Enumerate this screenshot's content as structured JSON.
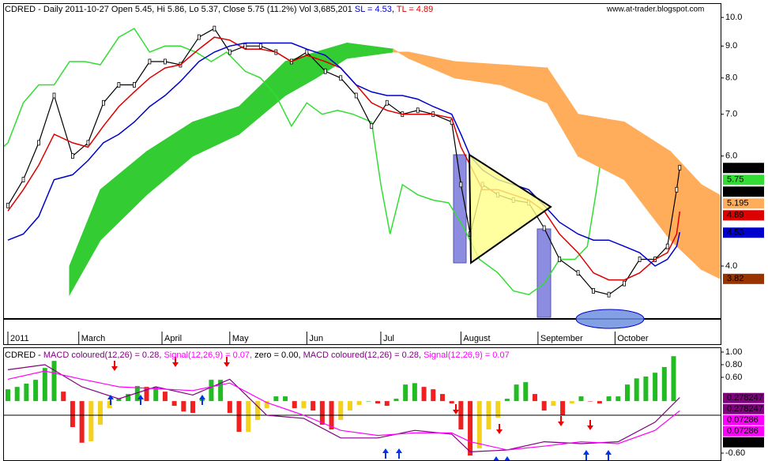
{
  "chart_data": [
    {
      "type": "ichimoku",
      "title": "CDRED - Daily 2011-10-27 Open 5.45, Hi 5.86, Lo 5.37, Close 5.75 (11.2%) Vol 3,685,201",
      "sl_label": "SL = 4.53",
      "sl_color": "#0000cc",
      "tl_label": "TL = 4.89",
      "tl_color": "#dd0000",
      "watermark": "www.at-trader.blogspot.com",
      "log_scale": true,
      "xlim": [
        0,
        231
      ],
      "ylim": [
        3.16,
        10.48
      ],
      "yticks": [
        {
          "value": 10,
          "label": "10.0"
        },
        {
          "value": 9,
          "label": "9.0"
        },
        {
          "value": 8,
          "label": "8.0"
        },
        {
          "value": 7,
          "label": "7.0"
        },
        {
          "value": 6,
          "label": "6.0"
        },
        {
          "value": 4,
          "label": "4.0"
        }
      ],
      "xticks": [
        {
          "value": 0,
          "label": "2011"
        },
        {
          "value": 23,
          "label": "March"
        },
        {
          "value": 50,
          "label": "April"
        },
        {
          "value": 72,
          "label": "May"
        },
        {
          "value": 97,
          "label": "Jun"
        },
        {
          "value": 121,
          "label": "Jul"
        },
        {
          "value": 147,
          "label": "August"
        },
        {
          "value": 172,
          "label": "September"
        },
        {
          "value": 197,
          "label": "October"
        }
      ],
      "x": [
        0,
        5,
        10,
        15,
        21,
        26,
        31,
        36,
        41,
        46,
        51,
        56,
        62,
        67,
        72,
        77,
        82,
        87,
        92,
        97,
        103,
        108,
        113,
        118,
        123,
        128,
        133,
        138,
        144,
        147,
        150,
        154,
        159,
        164,
        169,
        174,
        179,
        185,
        190,
        195,
        200,
        205,
        210,
        214,
        217,
        218
      ],
      "series": [
        {
          "color": "#000000",
          "values": [
            5.0,
            5.5,
            6.3,
            7.5,
            6.0,
            6.3,
            7.3,
            7.8,
            7.8,
            8.5,
            8.5,
            8.4,
            9.3,
            9.6,
            8.8,
            9.0,
            9.0,
            8.8,
            8.5,
            8.8,
            8.2,
            8.0,
            7.5,
            6.7,
            7.3,
            7.0,
            7.1,
            7.0,
            6.8,
            5.4,
            4.5,
            5.4,
            5.2,
            5.1,
            5.05,
            4.6,
            4.1,
            3.9,
            3.65,
            3.6,
            3.75,
            4.1,
            4.1,
            4.3,
            5.3,
            5.75
          ]
        },
        {
          "color": "#dd0000",
          "values": [
            4.9,
            5.3,
            5.8,
            6.5,
            6.3,
            6.2,
            6.7,
            7.2,
            7.6,
            8.0,
            8.3,
            8.4,
            8.9,
            9.3,
            9.2,
            8.9,
            8.9,
            8.8,
            8.5,
            8.7,
            8.5,
            8.3,
            7.8,
            7.3,
            7.1,
            7.0,
            7.0,
            7.0,
            6.9,
            6.2,
            5.8,
            5.3,
            5.3,
            5.2,
            5.1,
            4.9,
            4.5,
            4.2,
            3.9,
            3.8,
            3.8,
            3.9,
            4.1,
            4.2,
            4.5,
            4.89
          ]
        },
        {
          "color": "#0000cc",
          "values": [
            4.4,
            4.5,
            4.8,
            5.5,
            5.6,
            5.9,
            6.3,
            6.5,
            6.8,
            7.2,
            7.5,
            7.9,
            8.5,
            8.8,
            9.0,
            9.1,
            9.1,
            9.1,
            9.1,
            8.9,
            8.7,
            8.3,
            7.8,
            7.6,
            7.5,
            7.5,
            7.4,
            7.2,
            7.0,
            6.5,
            6.0,
            5.7,
            5.5,
            5.4,
            5.3,
            5.0,
            4.7,
            4.5,
            4.4,
            4.4,
            4.3,
            4.2,
            4.0,
            4.1,
            4.3,
            4.53
          ]
        }
      ],
      "chikou": {
        "color": "#33dd33",
        "shift": 26
      },
      "cloud": {
        "x": [
          20,
          30,
          45,
          60,
          75,
          90,
          100,
          110,
          125,
          130,
          145,
          160,
          175,
          185,
          200,
          215,
          225,
          231
        ],
        "span_a": [
          4.0,
          5.3,
          6.1,
          6.8,
          7.2,
          8.5,
          8.8,
          9.1,
          8.9,
          8.6,
          8.0,
          7.8,
          7.3,
          6.0,
          5.5,
          4.4,
          3.95,
          3.82
        ],
        "span_b": [
          3.6,
          4.4,
          5.2,
          6.0,
          6.5,
          7.5,
          8.0,
          8.6,
          8.8,
          8.8,
          8.5,
          8.4,
          8.3,
          7.0,
          6.8,
          6.1,
          5.4,
          5.195
        ],
        "up_color": "#33cc33",
        "down_color": "#ffad5b"
      },
      "price_tags": [
        {
          "value": 5.75,
          "color": "#000000",
          "text_color": "#ffffff"
        },
        {
          "value": 5.75,
          "color": "#33dd33",
          "text_color": "#000000"
        },
        {
          "value": 5.75,
          "color": "#000000",
          "text_color": "#ffffff"
        },
        {
          "value": 5.195,
          "color": "#ffad5b",
          "text_color": "#000000"
        },
        {
          "value": 4.89,
          "color": "#dd0000",
          "text_color": "#000000"
        },
        {
          "value": 4.53,
          "color": "#0000cc",
          "text_color": "#ffffff"
        },
        {
          "value": 3.82,
          "color": "#993300",
          "text_color": "#ffffff"
        }
      ]
    },
    {
      "type": "macd",
      "title_parts": [
        {
          "text": "CDRED - ",
          "color": "#000000"
        },
        {
          "text": "MACD coloured(12,26) = 0.28,",
          "color": "#800080"
        },
        {
          "text": "Signal(12,26,9) = 0.07,",
          "color": "#ff00ff"
        },
        {
          "text": "zero = 0.00,",
          "color": "#000000"
        },
        {
          "text": "MACD coloured(12,26) = 0.28,",
          "color": "#800080"
        },
        {
          "text": "Signal(12,26,9) = 0.07",
          "color": "#ff00ff"
        }
      ],
      "xlim": [
        0,
        231
      ],
      "ylim": [
        -0.675,
        1.025
      ],
      "y2lim": [
        -1.2,
        1.07
      ],
      "yticks": [
        {
          "value": 1,
          "label": "1.00"
        },
        {
          "value": 0.8,
          "label": "0.80"
        },
        {
          "value": 0.6,
          "label": "0.60"
        },
        {
          "value": -0.6,
          "label": "-0.60"
        }
      ],
      "histogram": {
        "axis": "y2",
        "x": [
          0,
          3,
          6,
          9,
          12,
          15,
          18,
          21,
          24,
          27,
          30,
          33,
          36,
          39,
          42,
          45,
          48,
          51,
          54,
          57,
          60,
          63,
          66,
          69,
          72,
          75,
          78,
          81,
          84,
          87,
          90,
          93,
          96,
          99,
          102,
          105,
          108,
          111,
          114,
          117,
          120,
          123,
          126,
          129,
          132,
          135,
          138,
          141,
          144,
          147,
          150,
          153,
          156,
          159,
          162,
          165,
          168,
          171,
          174,
          177,
          180,
          183,
          186,
          189,
          192,
          195,
          198,
          201,
          204,
          207,
          210,
          213,
          216
        ],
        "values": [
          0.25,
          0.3,
          0.37,
          0.45,
          0.7,
          0.85,
          0.2,
          -0.55,
          -0.88,
          -0.85,
          -0.5,
          -0.15,
          0.05,
          0.15,
          0.32,
          0.3,
          0.3,
          0.2,
          -0.1,
          -0.22,
          -0.25,
          0.05,
          0.45,
          0.45,
          -0.25,
          -0.65,
          -0.65,
          -0.4,
          -0.15,
          0.1,
          0.1,
          -0.15,
          -0.15,
          -0.2,
          -0.5,
          -0.6,
          -0.4,
          -0.2,
          -0.08,
          0.0,
          -0.05,
          -0.1,
          0.05,
          0.35,
          0.38,
          0.3,
          0.25,
          0.15,
          -0.05,
          -0.6,
          -1.15,
          -1.0,
          -0.6,
          -0.35,
          0.05,
          0.35,
          0.4,
          0.15,
          -0.2,
          -0.1,
          -0.3,
          -0.05,
          0.1,
          0.0,
          -0.05,
          0.1,
          0.1,
          0.35,
          0.48,
          0.52,
          0.6,
          0.72,
          0.95
        ],
        "rise_color": "#22bb22",
        "fall_color": "#ee2020",
        "recover_color": "#f2d21e"
      },
      "x": [
        0,
        12,
        24,
        36,
        48,
        60,
        72,
        84,
        96,
        108,
        120,
        132,
        144,
        150,
        162,
        174,
        186,
        198,
        210,
        218
      ],
      "series": [
        {
          "color": "#800080",
          "values": [
            0.72,
            0.8,
            0.45,
            0.26,
            0.45,
            0.32,
            0.57,
            0.0,
            -0.05,
            -0.36,
            -0.36,
            -0.24,
            -0.3,
            -0.58,
            -0.55,
            -0.42,
            -0.45,
            -0.42,
            -0.11,
            0.28
          ]
        },
        {
          "color": "#ff00ff",
          "values": [
            0.57,
            0.7,
            0.57,
            0.45,
            0.42,
            0.39,
            0.51,
            0.2,
            0.0,
            -0.24,
            -0.32,
            -0.28,
            -0.28,
            -0.42,
            -0.55,
            -0.49,
            -0.42,
            -0.45,
            -0.24,
            0.07
          ]
        }
      ],
      "price_tags": [
        {
          "value": 0.278247,
          "color": "#800080",
          "text_color": "#ffffff"
        },
        {
          "value": 0.278247,
          "color": "#800080",
          "text_color": "#ffffff"
        },
        {
          "value": 0.07286,
          "color": "#ff00ff",
          "text_color": "#000000"
        },
        {
          "value": 0.07286,
          "color": "#ff00ff",
          "text_color": "#000000"
        },
        {
          "value": 0,
          "label": "0.00000",
          "color": "#000000",
          "text_color": "#ffffff"
        }
      ]
    }
  ]
}
